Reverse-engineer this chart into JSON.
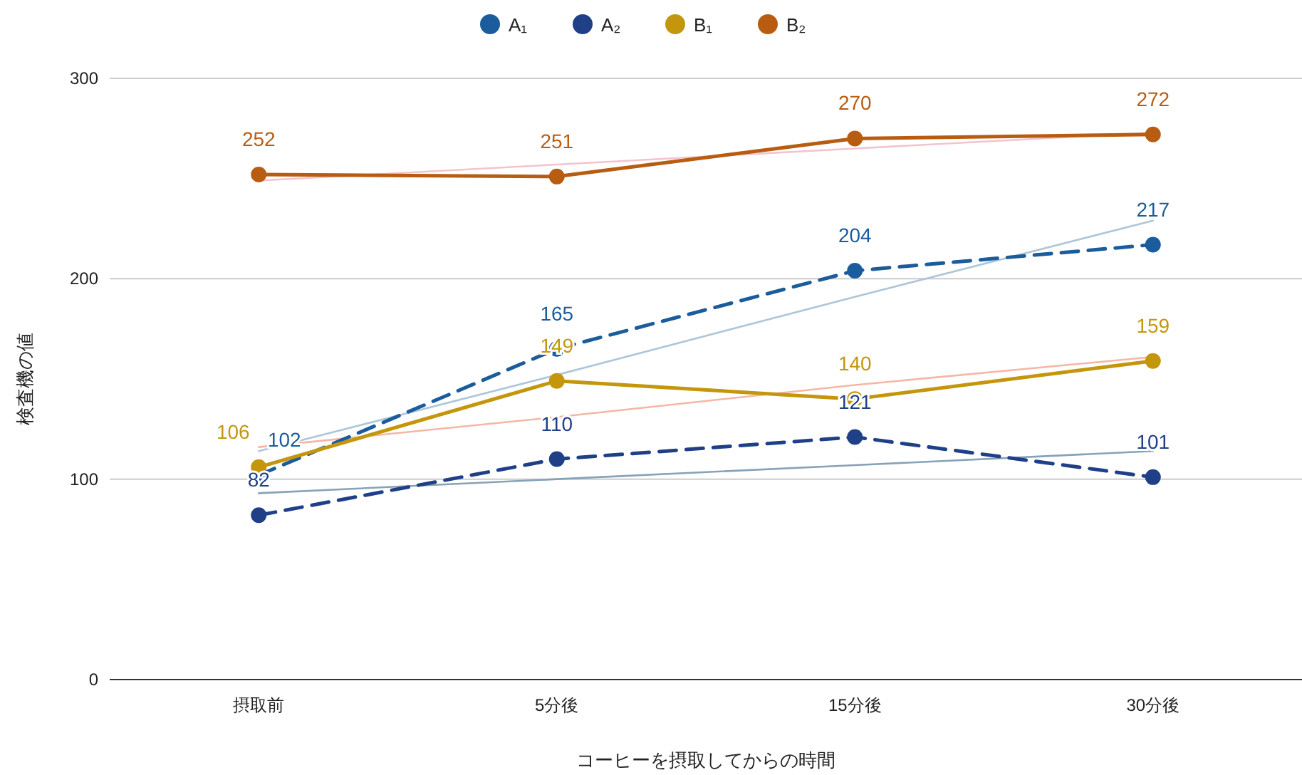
{
  "chart_data": {
    "type": "line",
    "xlabel": "コーヒーを摂取してからの時間",
    "ylabel": "検査機の値",
    "categories": [
      "摂取前",
      "5分後",
      "15分後",
      "30分後"
    ],
    "ylim": [
      0,
      300
    ],
    "yticks": [
      0,
      100,
      200,
      300
    ],
    "grid": "y",
    "legend": "top",
    "marker": "circle",
    "data_labels": true,
    "series": [
      {
        "color": "#f2c4cc",
        "type": "line",
        "marker": "none",
        "data_labels": false,
        "line_style": "solid",
        "values": [
          249,
          257,
          265,
          273
        ]
      },
      {
        "color": "#aec6d9",
        "type": "line",
        "marker": "none",
        "data_labels": false,
        "line_style": "solid",
        "values": [
          114,
          152,
          191,
          229
        ]
      },
      {
        "color": "#f5b6a6",
        "type": "line",
        "marker": "none",
        "data_labels": false,
        "line_style": "solid",
        "values": [
          116,
          131,
          147,
          161
        ]
      },
      {
        "color": "#86a2b6",
        "type": "line",
        "marker": "none",
        "data_labels": false,
        "line_style": "solid",
        "values": [
          93,
          100,
          107,
          114
        ]
      },
      {
        "name": "A₁",
        "color": "#1a5c9c",
        "line_style": "dashed",
        "values": [
          102,
          165,
          204,
          217
        ]
      },
      {
        "name": "A₂",
        "color": "#1f3f87",
        "line_style": "dashed",
        "values": [
          82,
          110,
          121,
          101
        ]
      },
      {
        "name": "B₁",
        "color": "#c4960c",
        "line_style": "solid",
        "values": [
          106,
          149,
          140,
          159
        ]
      },
      {
        "name": "B₂",
        "color": "#b85c12",
        "line_style": "solid",
        "values": [
          252,
          251,
          270,
          272
        ]
      }
    ]
  }
}
